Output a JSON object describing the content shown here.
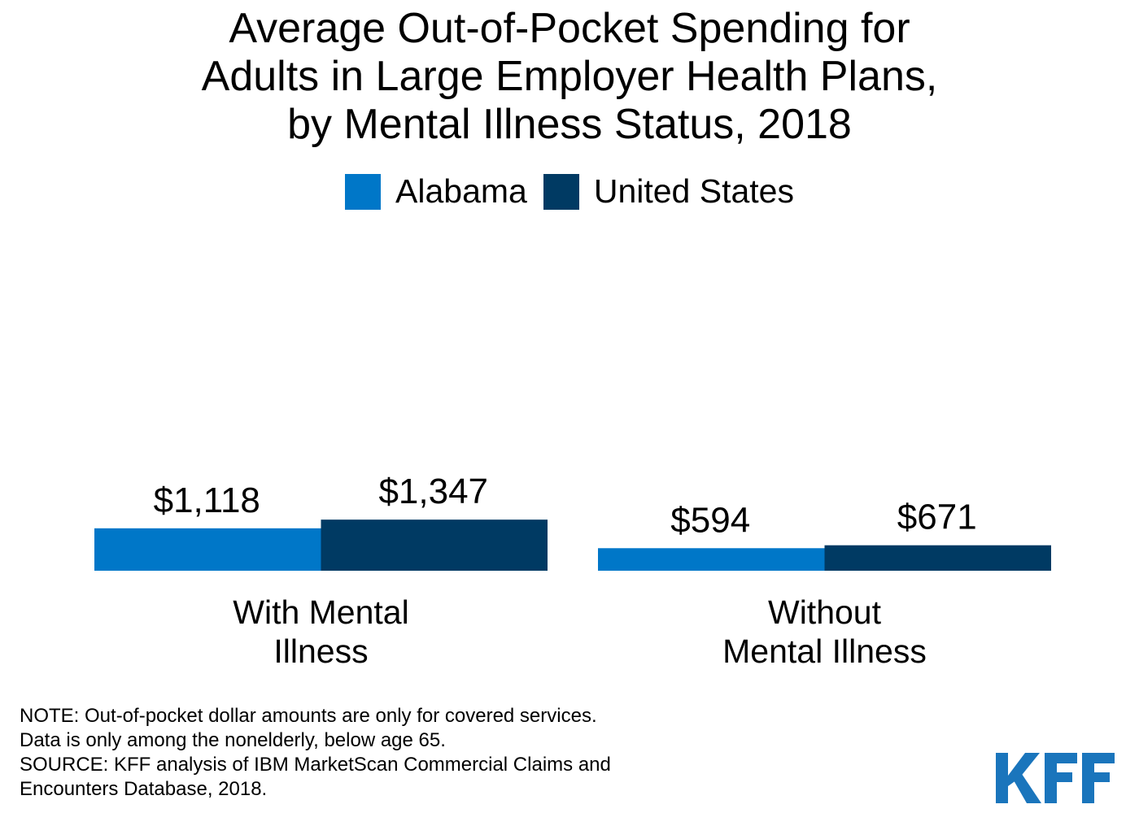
{
  "title_lines": [
    "Average Out-of-Pocket Spending for",
    "Adults in Large Employer Health Plans,",
    "by Mental Illness Status, 2018"
  ],
  "legend": [
    {
      "label": "Alabama",
      "color": "#0077c8"
    },
    {
      "label": "United States",
      "color": "#003a63"
    }
  ],
  "chart_data": {
    "type": "bar",
    "title": "Average Out-of-Pocket Spending for Adults in Large Employer Health Plans, by Mental Illness Status, 2018",
    "categories": [
      "With Mental Illness",
      "Without Mental Illness"
    ],
    "category_label_lines": [
      [
        "With Mental",
        "Illness"
      ],
      [
        "Without",
        "Mental Illness"
      ]
    ],
    "series": [
      {
        "name": "Alabama",
        "values": [
          1118,
          594
        ],
        "labels": [
          "$1,118",
          "$594"
        ],
        "color": "#0077c8"
      },
      {
        "name": "United States",
        "values": [
          1347,
          671
        ],
        "labels": [
          "$1,347",
          "$671"
        ],
        "color": "#003a63"
      }
    ],
    "xlabel": "",
    "ylabel": "",
    "ylim": [
      0,
      6000
    ],
    "grid": false,
    "legend_position": "top-center"
  },
  "note_lines": [
    "NOTE: Out-of-pocket dollar amounts are only for covered services.",
    "Data is only among the nonelderly, below age 65.",
    "SOURCE: KFF analysis of IBM MarketScan Commercial Claims and",
    "Encounters Database, 2018."
  ],
  "logo": {
    "text": "KFF",
    "color": "#1a75bc"
  }
}
